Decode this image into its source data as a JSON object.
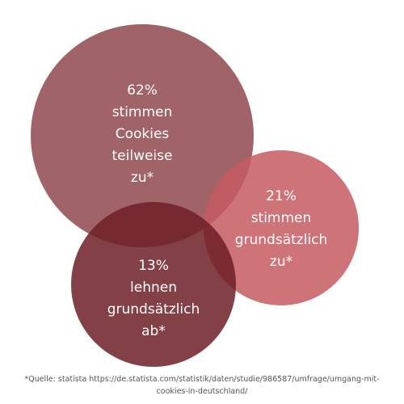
{
  "chart_data": {
    "type": "bubble",
    "series": [
      {
        "label": "62% stimmen Cookies teilweise zu*",
        "value": 62,
        "label_lines": [
          "62%",
          "stimmen",
          "Cookies",
          "teilweise",
          "zu*"
        ],
        "color": "#8e484d",
        "opacity": 0.85
      },
      {
        "label": "21% stimmen grundsätzlich zu*",
        "value": 21,
        "label_lines": [
          "21%",
          "stimmen",
          "grundsätzlich",
          "zu*"
        ],
        "color": "#c55a60",
        "opacity": 0.85
      },
      {
        "label": "13% lehnen grundsätzlich ab*",
        "value": 13,
        "label_lines": [
          "13%",
          "lehnen",
          "grundsätzlich",
          "ab*"
        ],
        "color": "#6e1f27",
        "opacity": 0.85
      }
    ]
  },
  "footnote": {
    "line1": "*Quelle: statista https://de.statista.com/statistik/daten/studie/986587/umfrage/umgang-mit-",
    "line2": "cookies-in-deutschland/"
  }
}
